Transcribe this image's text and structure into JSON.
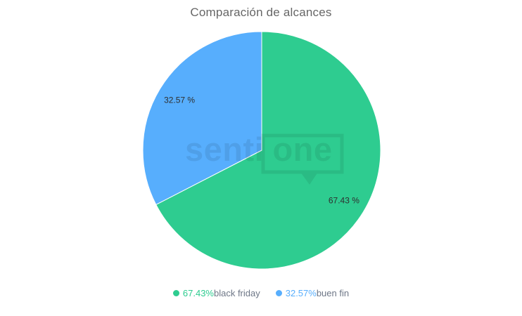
{
  "chart_data": {
    "type": "pie",
    "title": "Comparación de alcances",
    "legend_position": "bottom",
    "start_angle_deg": 0,
    "direction": "clockwise",
    "total": 100,
    "series": [
      {
        "name": "black friday",
        "value": 67.43,
        "slice_label": "67.43 %",
        "legend_pct": "67.43%",
        "color": "#2ECC90"
      },
      {
        "name": "buen fin",
        "value": 32.57,
        "slice_label": "32.57 %",
        "legend_pct": "32.57%",
        "color": "#57AEFD"
      }
    ]
  },
  "watermark": {
    "text_left": "senti",
    "text_right": "one"
  },
  "colors": {
    "title": "#666666",
    "legend_label": "#6E7787",
    "slice_label": "#2F2F2F",
    "slice_border": "#FFFFFF",
    "watermark": "#000000"
  }
}
